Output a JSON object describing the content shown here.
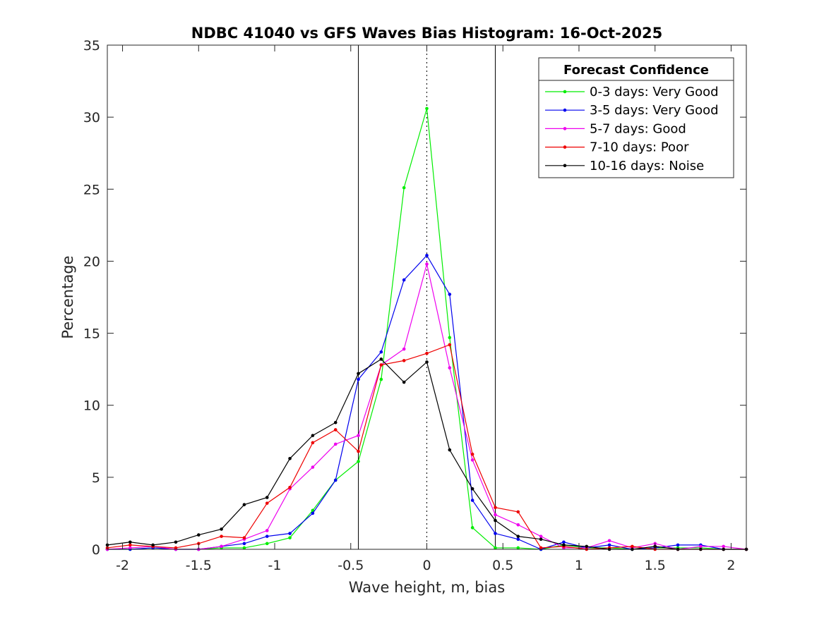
{
  "chart_data": {
    "type": "line",
    "title": "NDBC 41040 vs GFS Waves Bias Histogram: 16-Oct-2025",
    "xlabel": "Wave height, m, bias",
    "ylabel": "Percentage",
    "xlim": [
      -2.1,
      2.1
    ],
    "ylim": [
      0,
      35
    ],
    "xticks": [
      -2,
      -1.5,
      -1,
      -0.5,
      0,
      0.5,
      1,
      1.5,
      2
    ],
    "xtick_labels": [
      "-2",
      "-1.5",
      "-1",
      "-0.5",
      "0",
      "0.5",
      "1",
      "1.5",
      "2"
    ],
    "yticks": [
      0,
      5,
      10,
      15,
      20,
      25,
      30,
      35
    ],
    "ytick_labels": [
      "0",
      "5",
      "10",
      "15",
      "20",
      "25",
      "30",
      "35"
    ],
    "vertical_lines": [
      {
        "x": -0.45,
        "style": "solid"
      },
      {
        "x": 0,
        "style": "dotted"
      },
      {
        "x": 0.45,
        "style": "solid"
      }
    ],
    "legend": {
      "title": "Forecast Confidence",
      "location": "top-right"
    },
    "x": [
      -2.1,
      -1.95,
      -1.8,
      -1.65,
      -1.5,
      -1.35,
      -1.2,
      -1.05,
      -0.9,
      -0.75,
      -0.6,
      -0.45,
      -0.3,
      -0.15,
      0,
      0.15,
      0.3,
      0.45,
      0.6,
      0.75,
      0.9,
      1.05,
      1.2,
      1.35,
      1.5,
      1.65,
      1.8,
      1.95,
      2.1
    ],
    "series": [
      {
        "name": "0-3 days: Very Good",
        "color": "#00ee00",
        "values": [
          0,
          0,
          0.1,
          0,
          0,
          0.1,
          0.1,
          0.4,
          0.8,
          2.7,
          4.8,
          6.1,
          11.8,
          25.1,
          30.6,
          14.7,
          1.5,
          0.1,
          0.1,
          0,
          0.3,
          0.1,
          0.1,
          0,
          0.1,
          0.1,
          0.1,
          0,
          0
        ]
      },
      {
        "name": "3-5 days: Very Good",
        "color": "#0000ee",
        "values": [
          0,
          0,
          0.1,
          0,
          0,
          0.2,
          0.4,
          0.9,
          1.1,
          2.5,
          4.8,
          11.8,
          13.7,
          18.7,
          20.4,
          17.7,
          3.4,
          1.1,
          0.7,
          0,
          0.5,
          0.1,
          0.3,
          0,
          0.1,
          0.3,
          0.3,
          0,
          0
        ]
      },
      {
        "name": "5-7 days: Good",
        "color": "#ee00ee",
        "values": [
          0,
          0.1,
          0.2,
          0,
          0,
          0.2,
          0.7,
          1.3,
          4.2,
          5.7,
          7.3,
          7.9,
          12.8,
          13.9,
          19.8,
          12.6,
          6.2,
          2.4,
          1.7,
          0.9,
          0.1,
          0.1,
          0.6,
          0.1,
          0.4,
          0,
          0.2,
          0.2,
          0
        ]
      },
      {
        "name": "7-10 days: Poor",
        "color": "#ee0000",
        "values": [
          0.1,
          0.3,
          0.2,
          0.1,
          0.4,
          0.9,
          0.8,
          3.2,
          4.3,
          7.4,
          8.3,
          6.8,
          12.8,
          13.1,
          13.6,
          14.2,
          6.6,
          2.9,
          2.6,
          0.1,
          0.2,
          0,
          0.1,
          0.2,
          0,
          0,
          0,
          0,
          0
        ]
      },
      {
        "name": "10-16 days: Noise",
        "color": "#000000",
        "values": [
          0.3,
          0.5,
          0.3,
          0.5,
          1.0,
          1.4,
          3.1,
          3.6,
          6.3,
          7.9,
          8.8,
          12.2,
          13.2,
          11.6,
          13.0,
          6.9,
          4.2,
          2.0,
          0.9,
          0.7,
          0.3,
          0.2,
          0,
          0,
          0.2,
          0,
          0,
          0,
          0
        ]
      }
    ]
  }
}
